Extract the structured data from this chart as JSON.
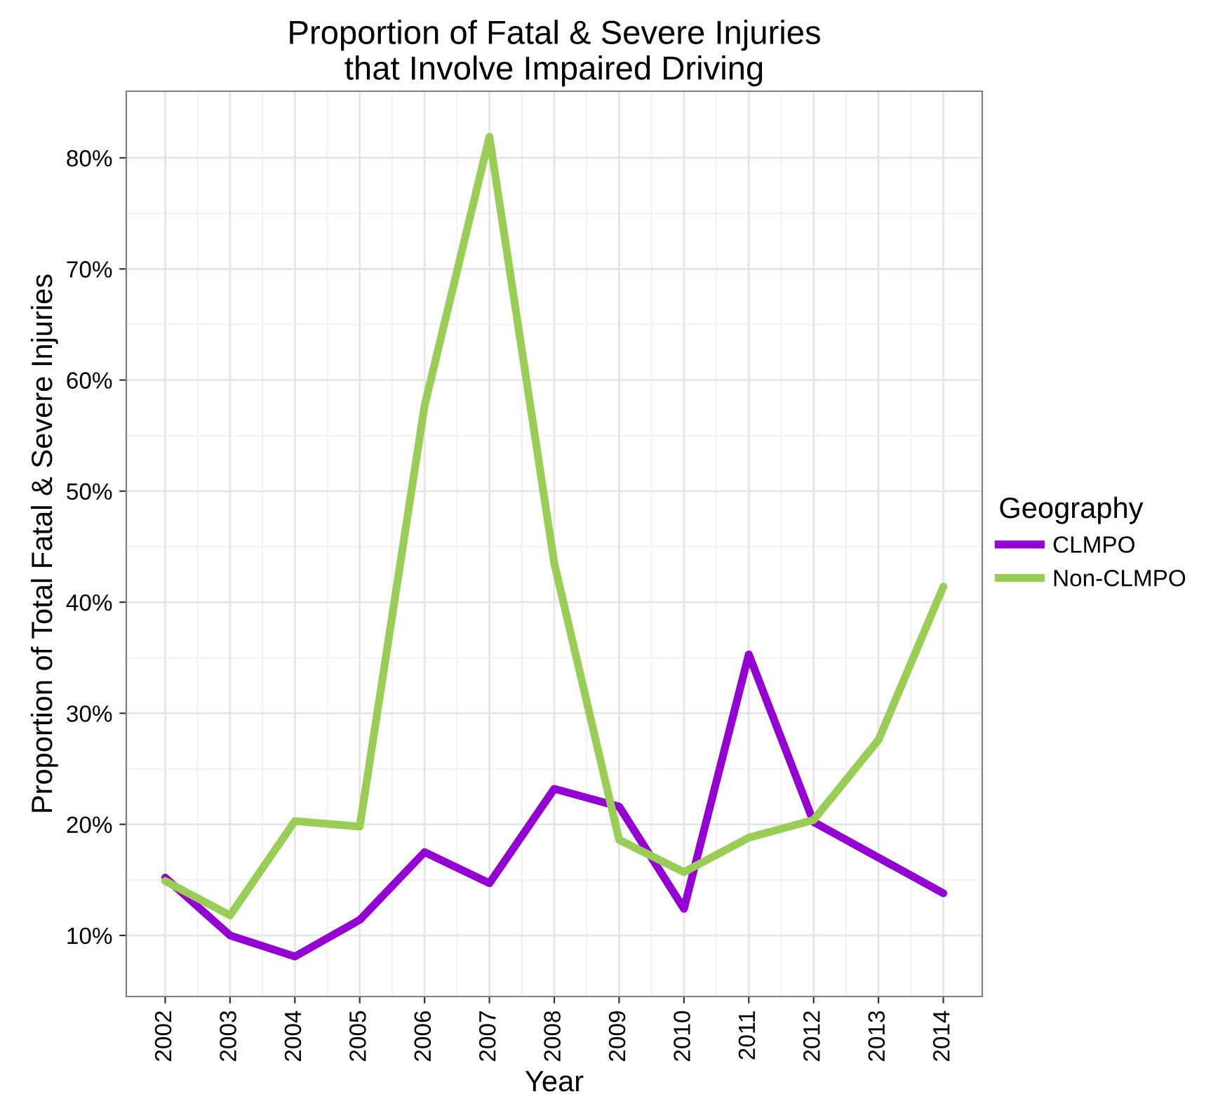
{
  "chart_data": {
    "type": "line",
    "title": "Proportion of Fatal & Severe Injuries\nthat Involve Impaired Driving",
    "xlabel": "Year",
    "ylabel": "Proportion of Total Fatal & Severe Injuries",
    "legend_title": "Geography",
    "x": [
      2002,
      2003,
      2004,
      2005,
      2006,
      2007,
      2008,
      2009,
      2010,
      2011,
      2012,
      2013,
      2014
    ],
    "series": [
      {
        "name": "CLMPO",
        "color": "#9400d3",
        "values": [
          15.2,
          10.0,
          8.1,
          11.4,
          17.5,
          14.7,
          23.2,
          21.6,
          12.4,
          35.3,
          20.2,
          17.0,
          13.8
        ]
      },
      {
        "name": "Non-CLMPO",
        "color": "#9acd56",
        "values": [
          14.9,
          11.8,
          20.3,
          19.8,
          57.7,
          81.9,
          43.5,
          18.6,
          15.7,
          18.8,
          20.4,
          27.6,
          41.4
        ]
      }
    ],
    "xlim": [
      2001.4,
      2014.6
    ],
    "ylim": [
      4.5,
      86.0
    ],
    "xticks": [
      2002,
      2003,
      2004,
      2005,
      2006,
      2007,
      2008,
      2009,
      2010,
      2011,
      2012,
      2013,
      2014
    ],
    "yticks": [
      {
        "value": 10,
        "label": "10%"
      },
      {
        "value": 20,
        "label": "20%"
      },
      {
        "value": 30,
        "label": "30%"
      },
      {
        "value": 40,
        "label": "40%"
      },
      {
        "value": 50,
        "label": "50%"
      },
      {
        "value": 60,
        "label": "60%"
      },
      {
        "value": 70,
        "label": "70%"
      },
      {
        "value": 80,
        "label": "80%"
      }
    ],
    "grid": true,
    "legend": "right",
    "marker": "none",
    "line_style": "solid"
  }
}
